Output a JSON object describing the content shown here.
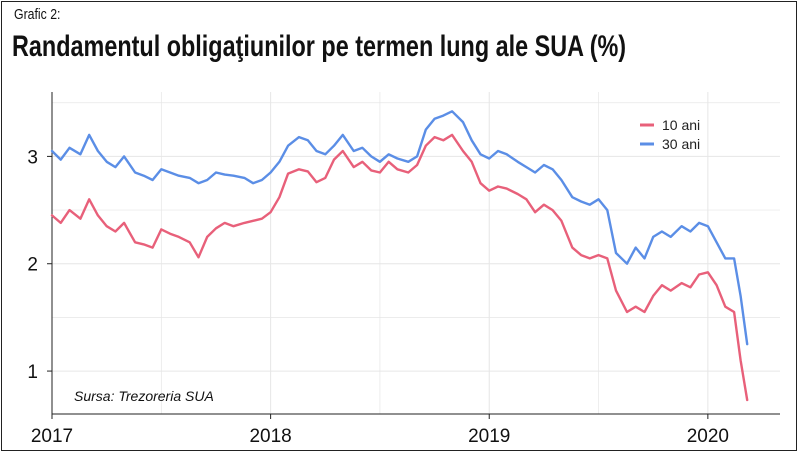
{
  "header": {
    "subtitle": "Grafic 2:",
    "title": "Randamentul obligaţiunilor pe termen lung ale SUA (%)"
  },
  "source": "Sursa: Trezoreria SUA",
  "colors": {
    "series_10": "#e8607a",
    "series_30": "#5b8ee6",
    "grid": "#e6e6e6",
    "axis": "#222222"
  },
  "chart_data": {
    "type": "line",
    "title": "Randamentul obligaţiunilor pe termen lung ale SUA (%)",
    "xlabel": "",
    "ylabel": "",
    "xlim": [
      2017.0,
      2020.33
    ],
    "ylim": [
      0.6,
      3.6
    ],
    "x_ticks": [
      2017,
      2018,
      2019,
      2020
    ],
    "y_ticks": [
      1,
      2,
      3
    ],
    "grid": true,
    "legend_position": "top-right",
    "series": [
      {
        "name": "10 ani",
        "color": "#e8607a",
        "x": [
          2017.0,
          2017.04,
          2017.08,
          2017.13,
          2017.17,
          2017.21,
          2017.25,
          2017.29,
          2017.33,
          2017.38,
          2017.42,
          2017.46,
          2017.5,
          2017.54,
          2017.58,
          2017.63,
          2017.67,
          2017.71,
          2017.75,
          2017.79,
          2017.83,
          2017.88,
          2017.92,
          2017.96,
          2018.0,
          2018.04,
          2018.08,
          2018.13,
          2018.17,
          2018.21,
          2018.25,
          2018.29,
          2018.33,
          2018.38,
          2018.42,
          2018.46,
          2018.5,
          2018.54,
          2018.58,
          2018.63,
          2018.67,
          2018.71,
          2018.75,
          2018.79,
          2018.83,
          2018.88,
          2018.92,
          2018.96,
          2019.0,
          2019.04,
          2019.08,
          2019.13,
          2019.17,
          2019.21,
          2019.25,
          2019.29,
          2019.33,
          2019.38,
          2019.42,
          2019.46,
          2019.5,
          2019.54,
          2019.58,
          2019.63,
          2019.67,
          2019.71,
          2019.75,
          2019.79,
          2019.83,
          2019.88,
          2019.92,
          2019.96,
          2020.0,
          2020.04,
          2020.08,
          2020.12,
          2020.15,
          2020.18
        ],
        "values": [
          2.45,
          2.38,
          2.5,
          2.42,
          2.6,
          2.45,
          2.35,
          2.3,
          2.38,
          2.2,
          2.18,
          2.15,
          2.32,
          2.28,
          2.25,
          2.2,
          2.06,
          2.25,
          2.33,
          2.38,
          2.35,
          2.38,
          2.4,
          2.42,
          2.48,
          2.62,
          2.84,
          2.88,
          2.86,
          2.76,
          2.8,
          2.97,
          3.05,
          2.9,
          2.95,
          2.87,
          2.85,
          2.95,
          2.88,
          2.85,
          2.92,
          3.1,
          3.18,
          3.15,
          3.2,
          3.05,
          2.95,
          2.75,
          2.68,
          2.72,
          2.7,
          2.65,
          2.6,
          2.48,
          2.55,
          2.5,
          2.4,
          2.15,
          2.08,
          2.05,
          2.08,
          2.05,
          1.75,
          1.55,
          1.6,
          1.55,
          1.7,
          1.8,
          1.75,
          1.82,
          1.78,
          1.9,
          1.92,
          1.8,
          1.6,
          1.55,
          1.1,
          0.73
        ]
      },
      {
        "name": "30 ani",
        "color": "#5b8ee6",
        "x": [
          2017.0,
          2017.04,
          2017.08,
          2017.13,
          2017.17,
          2017.21,
          2017.25,
          2017.29,
          2017.33,
          2017.38,
          2017.42,
          2017.46,
          2017.5,
          2017.54,
          2017.58,
          2017.63,
          2017.67,
          2017.71,
          2017.75,
          2017.79,
          2017.83,
          2017.88,
          2017.92,
          2017.96,
          2018.0,
          2018.04,
          2018.08,
          2018.13,
          2018.17,
          2018.21,
          2018.25,
          2018.29,
          2018.33,
          2018.38,
          2018.42,
          2018.46,
          2018.5,
          2018.54,
          2018.58,
          2018.63,
          2018.67,
          2018.71,
          2018.75,
          2018.79,
          2018.83,
          2018.88,
          2018.92,
          2018.96,
          2019.0,
          2019.04,
          2019.08,
          2019.13,
          2019.17,
          2019.21,
          2019.25,
          2019.29,
          2019.33,
          2019.38,
          2019.42,
          2019.46,
          2019.5,
          2019.54,
          2019.58,
          2019.63,
          2019.67,
          2019.71,
          2019.75,
          2019.79,
          2019.83,
          2019.88,
          2019.92,
          2019.96,
          2020.0,
          2020.04,
          2020.08,
          2020.12,
          2020.15,
          2020.18
        ],
        "values": [
          3.05,
          2.97,
          3.08,
          3.02,
          3.2,
          3.05,
          2.95,
          2.9,
          3.0,
          2.85,
          2.82,
          2.78,
          2.88,
          2.85,
          2.82,
          2.8,
          2.75,
          2.78,
          2.85,
          2.83,
          2.82,
          2.8,
          2.75,
          2.78,
          2.85,
          2.95,
          3.1,
          3.18,
          3.15,
          3.05,
          3.02,
          3.1,
          3.2,
          3.05,
          3.08,
          3.0,
          2.95,
          3.02,
          2.98,
          2.95,
          3.0,
          3.25,
          3.35,
          3.38,
          3.42,
          3.32,
          3.15,
          3.02,
          2.98,
          3.05,
          3.02,
          2.95,
          2.9,
          2.85,
          2.92,
          2.88,
          2.78,
          2.62,
          2.58,
          2.55,
          2.6,
          2.5,
          2.1,
          2.0,
          2.15,
          2.05,
          2.25,
          2.3,
          2.25,
          2.35,
          2.3,
          2.38,
          2.35,
          2.2,
          2.05,
          2.05,
          1.7,
          1.25
        ]
      }
    ]
  }
}
